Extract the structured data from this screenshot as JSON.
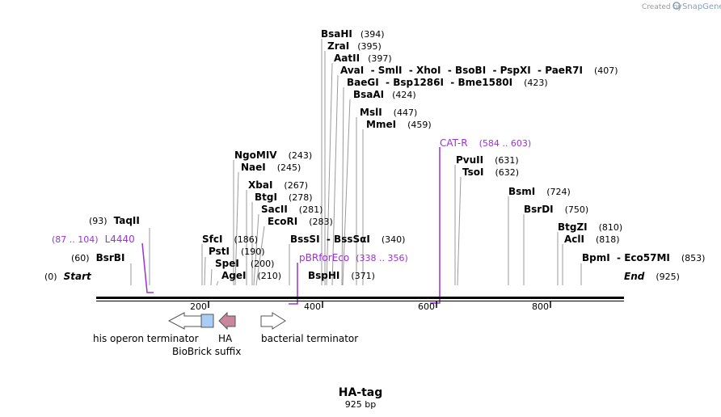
{
  "app": {
    "created_by": "Created by",
    "brand": "SnapGene"
  },
  "plasmid": {
    "name": "HA-tag",
    "length_label": "925 bp"
  },
  "ends": {
    "start_label": "Start",
    "start_pos": "(0)",
    "end_label": "End",
    "end_pos": "(925)"
  },
  "ruler": {
    "ticks": [
      "200",
      "400",
      "600",
      "800"
    ]
  },
  "enzymes": [
    {
      "text": "BsaHI",
      "pos": "(394)"
    },
    {
      "text": "ZraI",
      "pos": "(395)"
    },
    {
      "text": "AatII",
      "pos": "(397)"
    },
    {
      "text": "AvaI  - SmlI  - XhoI  - BsoBI  - PspXI  - PaeR7I",
      "pos": "(407)"
    },
    {
      "text": "BaeGI  - Bsp1286I  - Bme1580I",
      "pos": "(423)"
    },
    {
      "text": "BsaAI",
      "pos": "(424)"
    },
    {
      "text": "MslI",
      "pos": "(447)"
    },
    {
      "text": "MmeI",
      "pos": "(459)"
    },
    {
      "text": "NgoMIV",
      "pos": "(243)"
    },
    {
      "text": "NaeI",
      "pos": "(245)"
    },
    {
      "text": "XbaI",
      "pos": "(267)"
    },
    {
      "text": "BtgI",
      "pos": "(278)"
    },
    {
      "text": "SacII",
      "pos": "(281)"
    },
    {
      "text": "EcoRI",
      "pos": "(283)"
    },
    {
      "text": "BssSI  - BssSαI",
      "pos": "(340)"
    },
    {
      "text": "BspHI",
      "pos": "(371)"
    },
    {
      "text": "TaqII",
      "pos": "(93)"
    },
    {
      "text": "BsrBI",
      "pos": "(60)"
    },
    {
      "text": "SfcI",
      "pos": "(186)"
    },
    {
      "text": "PstI",
      "pos": "(190)"
    },
    {
      "text": "SpeI",
      "pos": "(200)"
    },
    {
      "text": "AgeI",
      "pos": "(210)"
    },
    {
      "text": "PvuII",
      "pos": "(631)"
    },
    {
      "text": "TsoI",
      "pos": "(632)"
    },
    {
      "text": "BsmI",
      "pos": "(724)"
    },
    {
      "text": "BsrDI",
      "pos": "(750)"
    },
    {
      "text": "BtgZI",
      "pos": "(810)"
    },
    {
      "text": "AclI",
      "pos": "(818)"
    },
    {
      "text": "BpmI  - Eco57MI",
      "pos": "(853)"
    }
  ],
  "primers": [
    {
      "name": "CAT-R",
      "range": "(584 .. 603)"
    },
    {
      "name": "L4440",
      "range": "(87 .. 104)"
    },
    {
      "name": "pBRforEco",
      "range": "(338 .. 356)"
    }
  ],
  "features": [
    {
      "label": "his operon terminator"
    },
    {
      "label": "BioBrick suffix"
    },
    {
      "label": "HA"
    },
    {
      "label": "bacterial terminator"
    }
  ],
  "colors": {
    "primer": "#9b32d6",
    "biobrick": "#a9cdf5",
    "ha": "#c8879c",
    "line": "#9a9a9a"
  }
}
